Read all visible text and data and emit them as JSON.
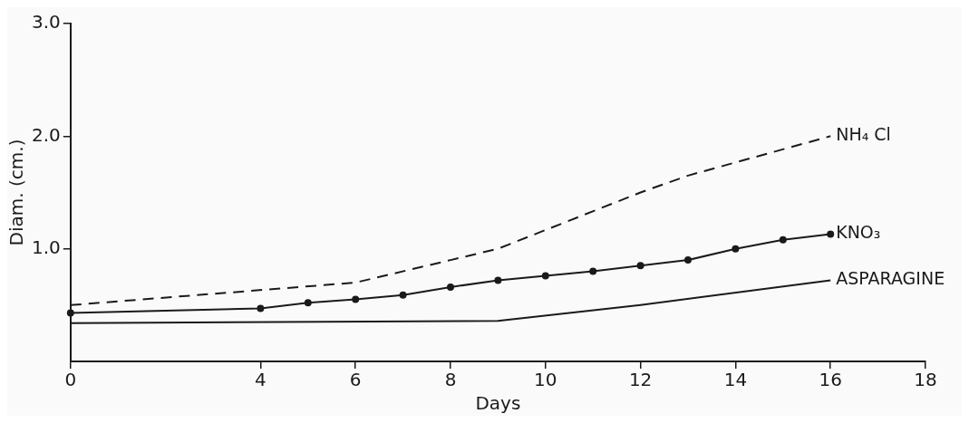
{
  "chart_data": {
    "type": "line",
    "xlabel": "Days",
    "ylabel": "Diam. (cm.)",
    "xlim": [
      0,
      18
    ],
    "xticks": [
      0,
      4,
      6,
      8,
      10,
      12,
      14,
      16,
      18
    ],
    "ylim": [
      0,
      3
    ],
    "yticks": [
      {
        "value": 1,
        "label": "1.0"
      },
      {
        "value": 2,
        "label": "2.0"
      },
      {
        "value": 3,
        "label": "3.0"
      }
    ],
    "grid": false,
    "legend": false,
    "series": [
      {
        "name": "NH₄ Cl",
        "color": "#1a1a1a",
        "line_style": "dashed",
        "marker": "none",
        "x": [
          0,
          6,
          8,
          9,
          12,
          13,
          16
        ],
        "values": [
          0.5,
          0.7,
          0.9,
          1.0,
          1.5,
          1.65,
          2.0
        ]
      },
      {
        "name": "KNO₃",
        "color": "#1a1a1a",
        "line_style": "solid",
        "marker": "circle",
        "x": [
          0,
          4,
          5,
          6,
          7,
          8,
          9,
          10,
          11,
          12,
          13,
          14,
          15,
          16
        ],
        "values": [
          0.43,
          0.47,
          0.52,
          0.55,
          0.59,
          0.66,
          0.72,
          0.76,
          0.8,
          0.85,
          0.9,
          1.0,
          1.08,
          1.13
        ]
      },
      {
        "name": "ASPARAGINE",
        "color": "#1a1a1a",
        "line_style": "solid",
        "marker": "none",
        "x": [
          0,
          9,
          12,
          16
        ],
        "values": [
          0.34,
          0.36,
          0.5,
          0.72
        ]
      }
    ]
  }
}
